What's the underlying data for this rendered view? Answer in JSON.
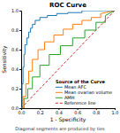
{
  "chart_data": {
    "type": "line",
    "title": "ROC Curve",
    "xlabel": "1 - Specificity",
    "ylabel": "Sensitivity",
    "footnote": "Diagonal segments are produced by ties",
    "xlim": [
      0.0,
      1.0
    ],
    "ylim": [
      0.0,
      1.0
    ],
    "xticks": [
      {
        "value": 0.0,
        "label": "0.0"
      },
      0.2,
      0.4,
      0.6,
      0.8,
      {
        "value": 1.0,
        "label": "1.0"
      }
    ],
    "yticks": [
      {
        "value": 0.0,
        "label": "0.0"
      },
      0.2,
      0.4,
      0.6,
      0.8,
      {
        "value": 1.0,
        "label": "1.0"
      }
    ],
    "grid": false,
    "legend": "lower right",
    "legend_title": "Source of the Curve",
    "series": [
      {
        "name": "Mean AFC",
        "line_style": "solid",
        "x": [
          0.0,
          0.01,
          0.01,
          0.02,
          0.02,
          0.03,
          0.03,
          0.04,
          0.04,
          0.06,
          0.06,
          0.08,
          0.08,
          0.1,
          0.1,
          0.12,
          0.12,
          0.15,
          0.15,
          0.2,
          0.2,
          0.28,
          0.28,
          0.38,
          0.38,
          0.5,
          0.5,
          0.65,
          0.65,
          1.0
        ],
        "values": [
          0.0,
          0.0,
          0.25,
          0.25,
          0.42,
          0.42,
          0.55,
          0.55,
          0.65,
          0.65,
          0.72,
          0.72,
          0.78,
          0.78,
          0.82,
          0.82,
          0.86,
          0.86,
          0.9,
          0.9,
          0.93,
          0.93,
          0.95,
          0.95,
          0.97,
          0.97,
          0.98,
          0.98,
          1.0,
          1.0
        ]
      },
      {
        "name": "Mean ovarian volume",
        "line_style": "solid",
        "x": [
          0.0,
          0.02,
          0.02,
          0.05,
          0.05,
          0.08,
          0.08,
          0.12,
          0.12,
          0.18,
          0.18,
          0.25,
          0.25,
          0.35,
          0.35,
          0.45,
          0.45,
          0.55,
          0.55,
          0.65,
          0.65,
          0.75,
          0.75,
          0.85,
          0.85,
          1.0
        ],
        "values": [
          0.0,
          0.0,
          0.12,
          0.12,
          0.25,
          0.25,
          0.38,
          0.38,
          0.5,
          0.5,
          0.6,
          0.6,
          0.68,
          0.68,
          0.75,
          0.75,
          0.81,
          0.81,
          0.86,
          0.86,
          0.9,
          0.9,
          0.93,
          0.93,
          0.97,
          1.0
        ]
      },
      {
        "name": "AMH",
        "line_style": "solid",
        "x": [
          0.0,
          0.03,
          0.03,
          0.07,
          0.07,
          0.12,
          0.12,
          0.2,
          0.2,
          0.3,
          0.3,
          0.42,
          0.42,
          0.55,
          0.55,
          0.68,
          0.68,
          0.8,
          0.8,
          0.9,
          0.9,
          1.0
        ],
        "values": [
          0.0,
          0.0,
          0.1,
          0.1,
          0.2,
          0.2,
          0.32,
          0.32,
          0.44,
          0.44,
          0.55,
          0.55,
          0.64,
          0.64,
          0.72,
          0.72,
          0.8,
          0.8,
          0.88,
          0.88,
          0.95,
          1.0
        ]
      },
      {
        "name": "Reference line",
        "line_style": "dashed",
        "x": [
          0,
          1
        ],
        "values": [
          0,
          1
        ]
      }
    ]
  }
}
